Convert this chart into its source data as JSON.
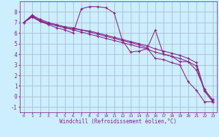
{
  "background_color": "#cceeff",
  "grid_color": "#aabbcc",
  "line_color": "#882288",
  "xlabel": "Windchill (Refroidissement éolien,°C)",
  "xlim": [
    -0.5,
    23.5
  ],
  "ylim": [
    -1.5,
    9.0
  ],
  "xticks": [
    0,
    1,
    2,
    3,
    4,
    5,
    6,
    7,
    8,
    9,
    10,
    11,
    12,
    13,
    14,
    15,
    16,
    17,
    18,
    19,
    20,
    21,
    22,
    23
  ],
  "yticks": [
    -1,
    0,
    1,
    2,
    3,
    4,
    5,
    6,
    7,
    8
  ],
  "series1_x": [
    0,
    1,
    2,
    3,
    4,
    5,
    6,
    7,
    8,
    9,
    10,
    11,
    12,
    13,
    14,
    15,
    16,
    17,
    18,
    19,
    20,
    21,
    22,
    23
  ],
  "series1_y": [
    7.0,
    7.7,
    7.1,
    6.8,
    6.5,
    6.3,
    6.0,
    8.3,
    8.5,
    8.5,
    8.4,
    7.9,
    5.3,
    4.2,
    4.3,
    4.5,
    6.3,
    4.0,
    3.8,
    3.3,
    3.3,
    2.5,
    0.7,
    -0.4
  ],
  "series2_x": [
    0,
    1,
    2,
    3,
    4,
    5,
    6,
    7,
    8,
    9,
    10,
    11,
    12,
    13,
    14,
    15,
    16,
    17,
    18,
    19,
    20,
    21,
    22,
    23
  ],
  "series2_y": [
    7.0,
    7.7,
    7.3,
    7.0,
    6.8,
    6.6,
    6.5,
    6.3,
    6.2,
    6.0,
    5.8,
    5.6,
    5.4,
    5.2,
    5.0,
    4.8,
    4.5,
    4.3,
    4.1,
    3.9,
    3.6,
    3.2,
    0.6,
    -0.3
  ],
  "series3_x": [
    0,
    1,
    2,
    3,
    4,
    5,
    6,
    7,
    8,
    9,
    10,
    11,
    12,
    13,
    14,
    15,
    16,
    17,
    18,
    19,
    20,
    21,
    22,
    23
  ],
  "series3_y": [
    7.0,
    7.6,
    7.2,
    6.9,
    6.7,
    6.5,
    6.3,
    6.1,
    5.9,
    5.7,
    5.5,
    5.3,
    5.1,
    4.9,
    4.7,
    4.5,
    4.2,
    4.0,
    3.8,
    3.6,
    3.3,
    2.9,
    0.5,
    -0.5
  ],
  "series4_x": [
    0,
    1,
    2,
    3,
    4,
    5,
    6,
    7,
    8,
    9,
    10,
    11,
    12,
    13,
    14,
    15,
    16,
    17,
    18,
    19,
    20,
    21,
    22,
    23
  ],
  "series4_y": [
    7.0,
    7.5,
    7.1,
    6.9,
    6.7,
    6.5,
    6.4,
    6.3,
    6.1,
    5.9,
    5.7,
    5.5,
    5.3,
    5.1,
    4.9,
    4.6,
    3.6,
    3.5,
    3.2,
    3.0,
    1.4,
    0.6,
    -0.5,
    -0.5
  ]
}
